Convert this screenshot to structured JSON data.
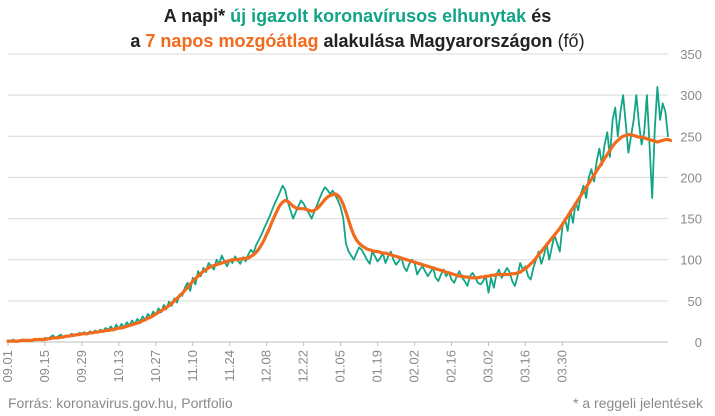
{
  "title": {
    "line1": {
      "p1": "A napi* ",
      "p2": "új igazolt koronavírusos elhunytak",
      "p3": " és"
    },
    "line2": {
      "p1": "a ",
      "p2": "7 napos mozgóátlag",
      "p3": " alakulása Magyarországon",
      "p4": " (fő)"
    }
  },
  "footer": {
    "source": "Forrás: koronavirus.gov.hu, Portfolio",
    "note": "* a reggeli jelentések"
  },
  "colors": {
    "daily": "#11a585",
    "average": "#f26a1b",
    "grid": "#d9d9d9",
    "text": "#8a8a8a"
  },
  "chart_data": {
    "type": "line",
    "x_ticks": [
      "09.01",
      "09.15",
      "09.29",
      "10.13",
      "10.27",
      "11.10",
      "11.24",
      "12.08",
      "12.22",
      "01.05",
      "01.19",
      "02.02",
      "02.16",
      "03.02",
      "03.16",
      "03.30"
    ],
    "y_ticks": [
      "0",
      "50",
      "100",
      "150",
      "200",
      "250",
      "300",
      "350"
    ],
    "ylim": [
      0,
      350
    ],
    "y_axis_position": "right",
    "grid": "horizontal",
    "x_start": "09.01",
    "series": [
      {
        "name": "új igazolt koronavírusos elhunytak",
        "role": "daily",
        "color": "#11a585",
        "values": [
          2,
          1,
          3,
          0,
          2,
          1,
          3,
          2,
          1,
          2,
          2,
          3,
          4,
          2,
          5,
          3,
          6,
          8,
          5,
          7,
          9,
          6,
          8,
          7,
          10,
          9,
          8,
          11,
          10,
          12,
          9,
          13,
          11,
          14,
          12,
          15,
          13,
          17,
          15,
          19,
          14,
          21,
          16,
          22,
          18,
          24,
          20,
          26,
          22,
          28,
          25,
          31,
          27,
          34,
          30,
          37,
          33,
          41,
          36,
          45,
          40,
          49,
          44,
          53,
          48,
          58,
          56,
          66,
          72,
          62,
          78,
          70,
          86,
          80,
          90,
          85,
          96,
          92,
          88,
          100,
          95,
          105,
          98,
          92,
          100,
          96,
          104,
          99,
          95,
          103,
          98,
          106,
          112,
          108,
          118,
          124,
          130,
          138,
          145,
          152,
          160,
          168,
          175,
          182,
          190,
          185,
          170,
          160,
          150,
          158,
          165,
          172,
          168,
          162,
          156,
          150,
          158,
          166,
          174,
          182,
          188,
          185,
          180,
          184,
          178,
          172,
          164,
          150,
          120,
          110,
          105,
          100,
          108,
          115,
          112,
          106,
          100,
          95,
          110,
          104,
          98,
          102,
          108,
          96,
          104,
          110,
          100,
          94,
          98,
          103,
          91,
          86,
          95,
          100,
          96,
          82,
          88,
          92,
          86,
          80,
          85,
          90,
          78,
          74,
          82,
          88,
          80,
          85,
          76,
          72,
          80,
          86,
          78,
          74,
          68,
          80,
          84,
          78,
          72,
          70,
          74,
          80,
          60,
          78,
          66,
          82,
          88,
          78,
          84,
          90,
          85,
          74,
          68,
          80,
          96,
          88,
          92,
          80,
          76,
          90,
          100,
          110,
          95,
          105,
          120,
          100,
          115,
          130,
          120,
          110,
          140,
          150,
          135,
          160,
          145,
          170,
          160,
          180,
          190,
          175,
          200,
          210,
          195,
          220,
          235,
          215,
          240,
          255,
          225,
          270,
          285,
          250,
          280,
          300,
          265,
          230,
          250,
          270,
          300,
          265,
          240,
          255,
          300,
          240,
          175,
          260,
          310,
          270,
          290,
          280,
          250
        ]
      },
      {
        "name": "7 napos mozgóátlag",
        "role": "average",
        "color": "#f26a1b",
        "values": [
          1,
          1,
          1,
          1,
          1,
          2,
          2,
          2,
          2,
          2,
          3,
          3,
          3,
          3,
          3,
          4,
          4,
          5,
          5,
          5,
          6,
          6,
          7,
          7,
          8,
          8,
          9,
          9,
          10,
          10,
          10,
          11,
          11,
          12,
          12,
          13,
          13,
          14,
          14,
          15,
          15,
          16,
          17,
          17,
          18,
          19,
          20,
          21,
          22,
          23,
          24,
          26,
          27,
          29,
          30,
          32,
          34,
          36,
          38,
          40,
          42,
          44,
          47,
          50,
          53,
          56,
          59,
          63,
          66,
          70,
          74,
          77,
          80,
          83,
          86,
          88,
          90,
          92,
          93,
          94,
          95,
          96,
          97,
          98,
          99,
          100,
          100,
          100,
          101,
          101,
          102,
          102,
          104,
          106,
          109,
          113,
          118,
          124,
          131,
          138,
          146,
          153,
          160,
          166,
          170,
          172,
          171,
          168,
          165,
          163,
          162,
          162,
          162,
          161,
          160,
          159,
          160,
          162,
          165,
          169,
          173,
          176,
          178,
          179,
          180,
          178,
          174,
          167,
          158,
          148,
          138,
          130,
          124,
          120,
          117,
          115,
          113,
          112,
          111,
          110,
          110,
          109,
          108,
          108,
          107,
          106,
          105,
          104,
          103,
          102,
          101,
          100,
          99,
          98,
          97,
          96,
          95,
          94,
          93,
          92,
          91,
          90,
          89,
          88,
          87,
          86,
          85,
          84,
          83,
          82,
          81,
          80,
          80,
          79,
          79,
          78,
          78,
          78,
          78,
          79,
          79,
          80,
          80,
          81,
          81,
          82,
          82,
          82,
          82,
          82,
          82,
          83,
          83,
          84,
          85,
          87,
          89,
          92,
          95,
          98,
          102,
          106,
          110,
          114,
          118,
          122,
          126,
          130,
          134,
          138,
          143,
          148,
          153,
          158,
          163,
          168,
          173,
          178,
          183,
          188,
          193,
          198,
          203,
          208,
          213,
          218,
          223,
          228,
          233,
          238,
          242,
          245,
          248,
          250,
          251,
          252,
          252,
          251,
          250,
          249,
          249,
          248,
          247,
          246,
          245,
          244,
          243,
          244,
          245,
          246,
          246,
          245
        ]
      }
    ]
  }
}
